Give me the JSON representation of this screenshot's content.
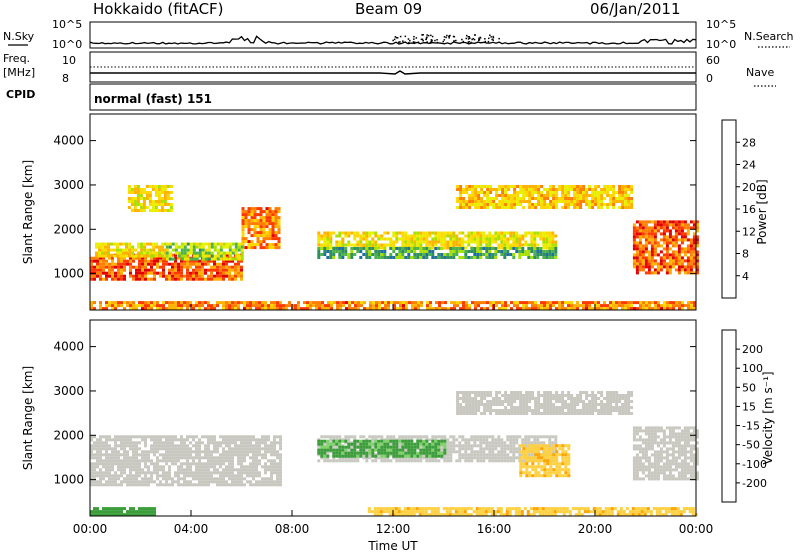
{
  "header": {
    "station": "Hokkaido (fitACF)",
    "beam": "Beam 09",
    "date": "06/Jan/2011"
  },
  "labels": {
    "nsky": "N.Sky",
    "nsearch": "N.Search",
    "freq": "Freq.",
    "freq_unit": "[MHz]",
    "nave": "Nave",
    "cpid": "CPID",
    "cpid_value": "normal (fast) 151",
    "x_axis": "Time UT",
    "y_axis": "Slant Range [km]"
  },
  "scales": {
    "noise_ticks": [
      "10^5",
      "10^0"
    ],
    "freq_ticks": [
      "10",
      "8"
    ],
    "nave_ticks": [
      "60",
      "0"
    ]
  },
  "power_colorbar": {
    "label": "Power [dB]",
    "ticks": [
      "28",
      "24",
      "20",
      "16",
      "12",
      "8",
      "4"
    ],
    "colors": [
      "#e00000",
      "#ff3a00",
      "#ff7f00",
      "#ffb300",
      "#ffd800",
      "#e8f000",
      "#a8e000",
      "#4cb34c",
      "#2f8f5f",
      "#1f6fa0",
      "#1c3fcf",
      "#0000ff"
    ]
  },
  "velocity_colorbar": {
    "label": "Velocity [m s⁻¹]",
    "ticks": [
      "200",
      "100",
      "50",
      "15",
      "-15",
      "-50",
      "-100",
      "-200"
    ],
    "colors": [
      "#1a3cc8",
      "#2f6fd8",
      "#3b9e3b",
      "#7fd26a",
      "#c8c8c0",
      "#ffd040",
      "#ffa400",
      "#ff6a00",
      "#e00000"
    ]
  },
  "chart_data": [
    {
      "type": "heatmap",
      "name": "power",
      "xlabel": "Time UT",
      "ylabel": "Slant Range [km]",
      "xticks": [
        "00:00",
        "04:00",
        "08:00",
        "12:00",
        "16:00",
        "20:00",
        "00:00"
      ],
      "yticks": [
        1000,
        2000,
        3000,
        4000
      ],
      "xlim_hours": [
        0,
        24
      ],
      "ylim_km": [
        180,
        4600
      ],
      "colorbar": "Power [dB]",
      "regions": [
        {
          "t": [
            0.0,
            6.0
          ],
          "r": [
            900,
            1450
          ],
          "value": 26
        },
        {
          "t": [
            6.0,
            7.5
          ],
          "r": [
            1600,
            2500
          ],
          "value": 24
        },
        {
          "t": [
            0.2,
            3.0
          ],
          "r": [
            1400,
            1700
          ],
          "value": 18
        },
        {
          "t": [
            3.0,
            6.0
          ],
          "r": [
            1350,
            1700
          ],
          "value": 14
        },
        {
          "t": [
            1.5,
            3.2
          ],
          "r": [
            2400,
            3000
          ],
          "value": 18
        },
        {
          "t": [
            9.0,
            18.5
          ],
          "r": [
            1550,
            1950
          ],
          "value": 18
        },
        {
          "t": [
            9.0,
            18.5
          ],
          "r": [
            1350,
            1600
          ],
          "value": 10
        },
        {
          "t": [
            14.5,
            21.5
          ],
          "r": [
            2500,
            3000
          ],
          "value": 20
        },
        {
          "t": [
            21.5,
            24.0
          ],
          "r": [
            1000,
            2200
          ],
          "value": 26
        },
        {
          "t": [
            0.0,
            24.0
          ],
          "r": [
            200,
            380
          ],
          "value": 24
        }
      ]
    },
    {
      "type": "heatmap",
      "name": "velocity",
      "xlabel": "Time UT",
      "ylabel": "Slant Range [km]",
      "xticks": [
        "00:00",
        "04:00",
        "08:00",
        "12:00",
        "16:00",
        "20:00",
        "00:00"
      ],
      "yticks": [
        1000,
        2000,
        3000,
        4000
      ],
      "xlim_hours": [
        0,
        24
      ],
      "ylim_km": [
        180,
        4600
      ],
      "colorbar": "Velocity [m s⁻¹]",
      "regions": [
        {
          "t": [
            0.0,
            7.5
          ],
          "r": [
            900,
            2000
          ],
          "value": 0
        },
        {
          "t": [
            9.0,
            18.5
          ],
          "r": [
            1400,
            2000
          ],
          "value": 0
        },
        {
          "t": [
            9.0,
            14.0
          ],
          "r": [
            1500,
            1900
          ],
          "value": 40
        },
        {
          "t": [
            17.0,
            19.0
          ],
          "r": [
            1100,
            1800
          ],
          "value": -40
        },
        {
          "t": [
            14.5,
            21.5
          ],
          "r": [
            2500,
            3000
          ],
          "value": 0
        },
        {
          "t": [
            21.5,
            24.0
          ],
          "r": [
            1000,
            2200
          ],
          "value": 0
        },
        {
          "t": [
            0.0,
            2.5
          ],
          "r": [
            200,
            380
          ],
          "value": 50
        },
        {
          "t": [
            11.0,
            24.0
          ],
          "r": [
            200,
            380
          ],
          "value": -40
        }
      ]
    }
  ]
}
